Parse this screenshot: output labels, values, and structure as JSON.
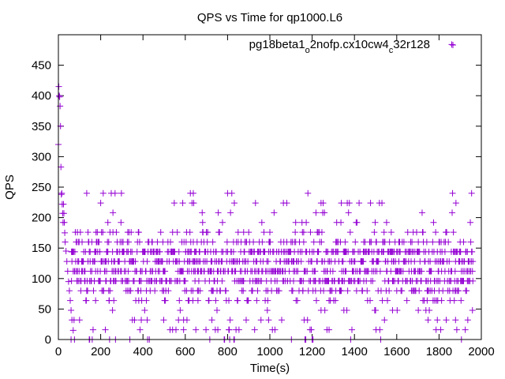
{
  "chart_data": {
    "type": "scatter",
    "title": "QPS vs Time for qp1000.L6",
    "xlabel": "Time(s)",
    "ylabel": "QPS",
    "xlim": [
      0,
      2000
    ],
    "ylim": [
      0,
      500
    ],
    "xticks": [
      0,
      200,
      400,
      600,
      800,
      1000,
      1200,
      1400,
      1600,
      1800,
      2000
    ],
    "yticks": [
      0,
      50,
      100,
      150,
      200,
      250,
      300,
      350,
      400,
      450
    ],
    "grid": false,
    "legend_position": "top-right",
    "series": [
      {
        "name_parts": [
          "pg18beta1",
          "o",
          "2nofp.cx10cw4",
          "c",
          "32r128"
        ],
        "color": "#9400d3",
        "marker": "plus",
        "early_points": [
          [
            0,
            320
          ],
          [
            2,
            415
          ],
          [
            4,
            400
          ],
          [
            6,
            398
          ],
          [
            8,
            383
          ],
          [
            10,
            350
          ],
          [
            12,
            283
          ],
          [
            14,
            238
          ],
          [
            16,
            240
          ],
          [
            18,
            222
          ],
          [
            20,
            207
          ],
          [
            22,
            192
          ],
          [
            24,
            222
          ],
          [
            26,
            207
          ],
          [
            28,
            192
          ],
          [
            30,
            175
          ],
          [
            32,
            160
          ],
          [
            36,
            145
          ],
          [
            40,
            128
          ],
          [
            44,
            112
          ],
          [
            48,
            95
          ],
          [
            52,
            80
          ],
          [
            56,
            64
          ],
          [
            60,
            48
          ],
          [
            64,
            32
          ],
          [
            70,
            15
          ],
          [
            76,
            0
          ]
        ],
        "levels": [
          0,
          16,
          32,
          48,
          64,
          80,
          96,
          112,
          128,
          144,
          160,
          176,
          192,
          208,
          224,
          240
        ],
        "x_range": [
          60,
          1960
        ],
        "outliers": [
          [
            212,
            240
          ],
          [
            298,
            240
          ],
          [
            640,
            224
          ],
          [
            800,
            240
          ],
          [
            820,
            240
          ],
          [
            1880,
            224
          ],
          [
            1860,
            484
          ]
        ]
      }
    ]
  }
}
